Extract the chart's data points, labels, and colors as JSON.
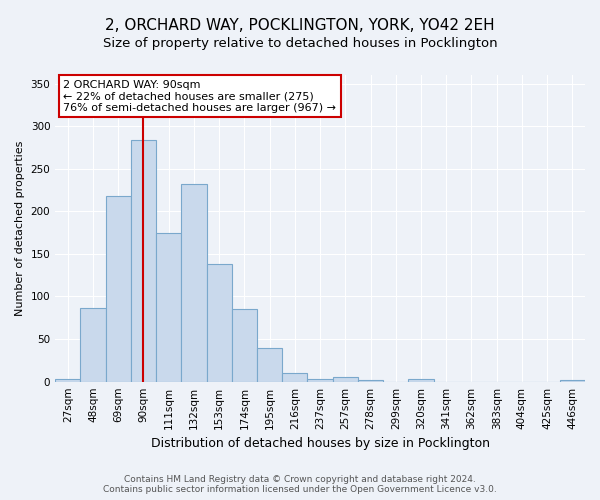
{
  "title": "2, ORCHARD WAY, POCKLINGTON, YORK, YO42 2EH",
  "subtitle": "Size of property relative to detached houses in Pocklington",
  "xlabel": "Distribution of detached houses by size in Pocklington",
  "ylabel": "Number of detached properties",
  "categories": [
    "27sqm",
    "48sqm",
    "69sqm",
    "90sqm",
    "111sqm",
    "132sqm",
    "153sqm",
    "174sqm",
    "195sqm",
    "216sqm",
    "237sqm",
    "257sqm",
    "278sqm",
    "299sqm",
    "320sqm",
    "341sqm",
    "362sqm",
    "383sqm",
    "404sqm",
    "425sqm",
    "446sqm"
  ],
  "values": [
    3,
    86,
    218,
    284,
    175,
    232,
    138,
    85,
    40,
    10,
    3,
    6,
    2,
    0,
    3,
    0,
    0,
    0,
    0,
    0,
    2
  ],
  "bar_color": "#c9d9ec",
  "bar_edge_color": "#7aa8cc",
  "highlight_bar_index": 3,
  "highlight_line_color": "#cc0000",
  "annotation_line1": "2 ORCHARD WAY: 90sqm",
  "annotation_line2": "← 22% of detached houses are smaller (275)",
  "annotation_line3": "76% of semi-detached houses are larger (967) →",
  "annotation_box_color": "#ffffff",
  "annotation_box_edge_color": "#cc0000",
  "ylim": [
    0,
    360
  ],
  "yticks": [
    0,
    50,
    100,
    150,
    200,
    250,
    300,
    350
  ],
  "footer_line1": "Contains HM Land Registry data © Crown copyright and database right 2024.",
  "footer_line2": "Contains public sector information licensed under the Open Government Licence v3.0.",
  "background_color": "#eef2f8",
  "plot_bg_color": "#eef2f8",
  "title_fontsize": 11,
  "subtitle_fontsize": 9.5,
  "xlabel_fontsize": 9,
  "ylabel_fontsize": 8,
  "tick_fontsize": 7.5,
  "annotation_fontsize": 8,
  "footer_fontsize": 6.5
}
